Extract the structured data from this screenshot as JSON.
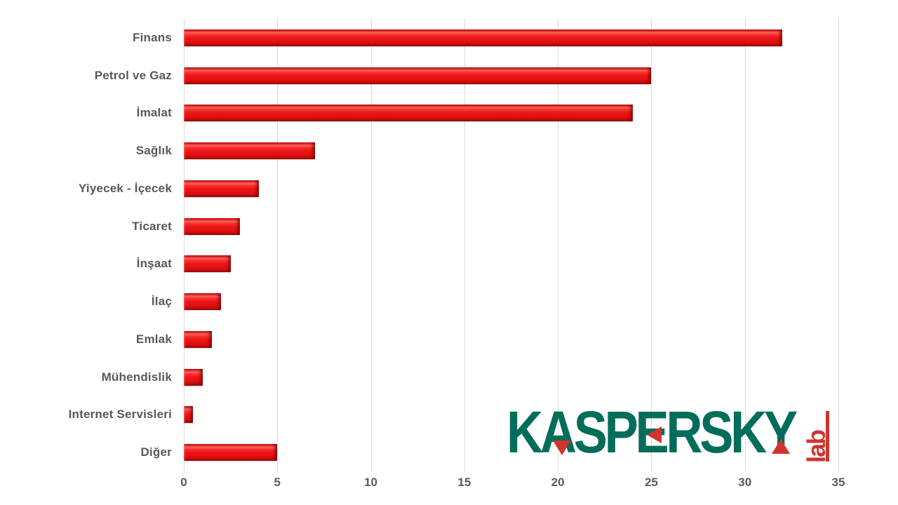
{
  "chart_data": {
    "type": "bar",
    "orientation": "horizontal",
    "title": "",
    "xlabel": "",
    "ylabel": "",
    "categories": [
      "Finans",
      "Petrol ve Gaz",
      "İmalat",
      "Sağlık",
      "Yiyecek - İçecek",
      "Ticaret",
      "İnşaat",
      "İlaç",
      "Emlak",
      "Mühendislik",
      "Internet Servisleri",
      "Diğer"
    ],
    "values": [
      32,
      25,
      24,
      7,
      4,
      3,
      2.5,
      2,
      1.5,
      1,
      0.5,
      5
    ],
    "xlim": [
      0,
      35
    ],
    "xticks": [
      0,
      5,
      10,
      15,
      20,
      25,
      30,
      35
    ],
    "grid": "vertical-only",
    "legend": "none",
    "bar_color": "#ee1616",
    "gridline_color": "#d9d9d9",
    "axis_label_color": "#595959"
  },
  "logo": {
    "brand": "KASPERSKY",
    "suffix": "lab",
    "green": "#006d5a",
    "red": "#cf342e"
  }
}
